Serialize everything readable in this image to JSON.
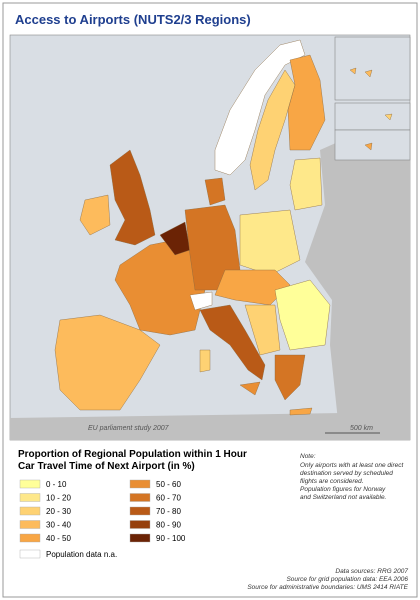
{
  "title": "Access to Airports (NUTS2/3 Regions)",
  "map": {
    "annotation": "EU parliament study 2007",
    "scale": "500 km"
  },
  "legend": {
    "title": "Proportion of Regional Population within 1 Hour Car Travel Time of Next Airport (in %)",
    "classes": [
      {
        "label": "0 - 10",
        "color": "#ffff99"
      },
      {
        "label": "10 - 20",
        "color": "#fee88a"
      },
      {
        "label": "20 - 30",
        "color": "#fed273"
      },
      {
        "label": "30 - 40",
        "color": "#fdbb5c"
      },
      {
        "label": "40 - 50",
        "color": "#f8a645"
      },
      {
        "label": "50 - 60",
        "color": "#e98e33"
      },
      {
        "label": "60 - 70",
        "color": "#d47524"
      },
      {
        "label": "70 - 80",
        "color": "#b95a17"
      },
      {
        "label": "80 - 90",
        "color": "#96400d"
      },
      {
        "label": "90 - 100",
        "color": "#6b2305"
      }
    ],
    "na": {
      "label": "Population data n.a.",
      "color": "#ffffff"
    }
  },
  "note": {
    "heading": "Note:",
    "lines": [
      "Only airports with at least one direct",
      "destination served by scheduled",
      "flights are considered.",
      "Population figures for Norway",
      "and Switzerland not available."
    ]
  },
  "sources": [
    "Data sources: RRG 2007",
    "Source for grid population data: EEA 2006",
    "Source for administrative boundaries: UMS 2414 RIATE"
  ]
}
